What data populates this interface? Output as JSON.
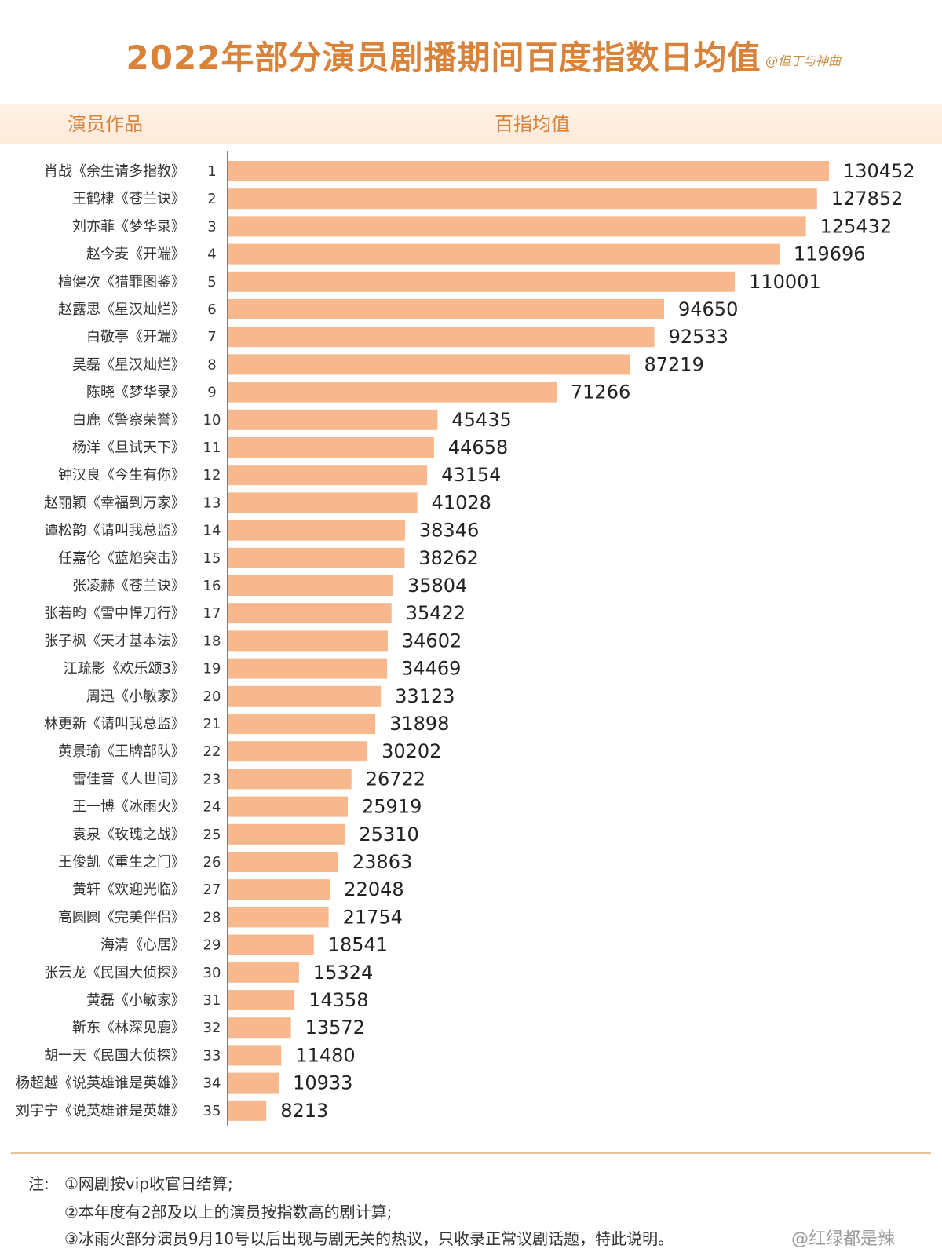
{
  "title": "2022年部分演员剧播期间百度指数日均值",
  "signature": "@但丁与神曲",
  "column_headers": {
    "left": "演员作品",
    "right": "百指均值"
  },
  "chart_data": {
    "type": "bar",
    "orientation": "horizontal",
    "title": "2022年部分演员剧播期间百度指数日均值",
    "bar_color": "#f6b88c",
    "categories": [
      "肖战《余生请多指教》",
      "王鹤棣《苍兰诀》",
      "刘亦菲《梦华录》",
      "赵今麦《开端》",
      "檀健次《猎罪图鉴》",
      "赵露思《星汉灿烂》",
      "白敬亭《开端》",
      "吴磊《星汉灿烂》",
      "陈晓《梦华录》",
      "白鹿《警察荣誉》",
      "杨洋《旦试天下》",
      "钟汉良《今生有你》",
      "赵丽颖《幸福到万家》",
      "谭松韵《请叫我总监》",
      "任嘉伦《蓝焰突击》",
      "张凌赫《苍兰诀》",
      "张若昀《雪中悍刀行》",
      "张子枫《天才基本法》",
      "江疏影《欢乐颂3》",
      "周迅《小敏家》",
      "林更新《请叫我总监》",
      "黄景瑜《王牌部队》",
      "雷佳音《人世间》",
      "王一博《冰雨火》",
      "袁泉《玫瑰之战》",
      "王俊凯《重生之门》",
      "黄轩《欢迎光临》",
      "高圆圆《完美伴侣》",
      "海清《心居》",
      "张云龙《民国大侦探》",
      "黄磊《小敏家》",
      "靳东《林深见鹿》",
      "胡一天《民国大侦探》",
      "杨超越《说英雄谁是英雄》",
      "刘宇宁《说英雄谁是英雄》"
    ],
    "ranks": [
      1,
      2,
      3,
      4,
      5,
      6,
      7,
      8,
      9,
      10,
      11,
      12,
      13,
      14,
      15,
      16,
      17,
      18,
      19,
      20,
      21,
      22,
      23,
      24,
      25,
      26,
      27,
      28,
      29,
      30,
      31,
      32,
      33,
      34,
      35
    ],
    "values": [
      130452,
      127852,
      125432,
      119696,
      110001,
      94650,
      92533,
      87219,
      71266,
      45435,
      44658,
      43154,
      41028,
      38346,
      38262,
      35804,
      35422,
      34602,
      34469,
      33123,
      31898,
      30202,
      26722,
      25919,
      25310,
      23863,
      22048,
      21754,
      18541,
      15324,
      14358,
      13572,
      11480,
      10933,
      8213
    ]
  },
  "notes": {
    "prefix": "注:",
    "items": [
      "①网剧按vip收官日结算;",
      "②本年度有2部及以上的演员按指数高的剧计算;",
      "③冰雨火部分演员9月10号以后出现与剧无关的热议，只收录正常议剧话题，特此说明。"
    ]
  },
  "weibo_tag": "@红绿都是辣"
}
